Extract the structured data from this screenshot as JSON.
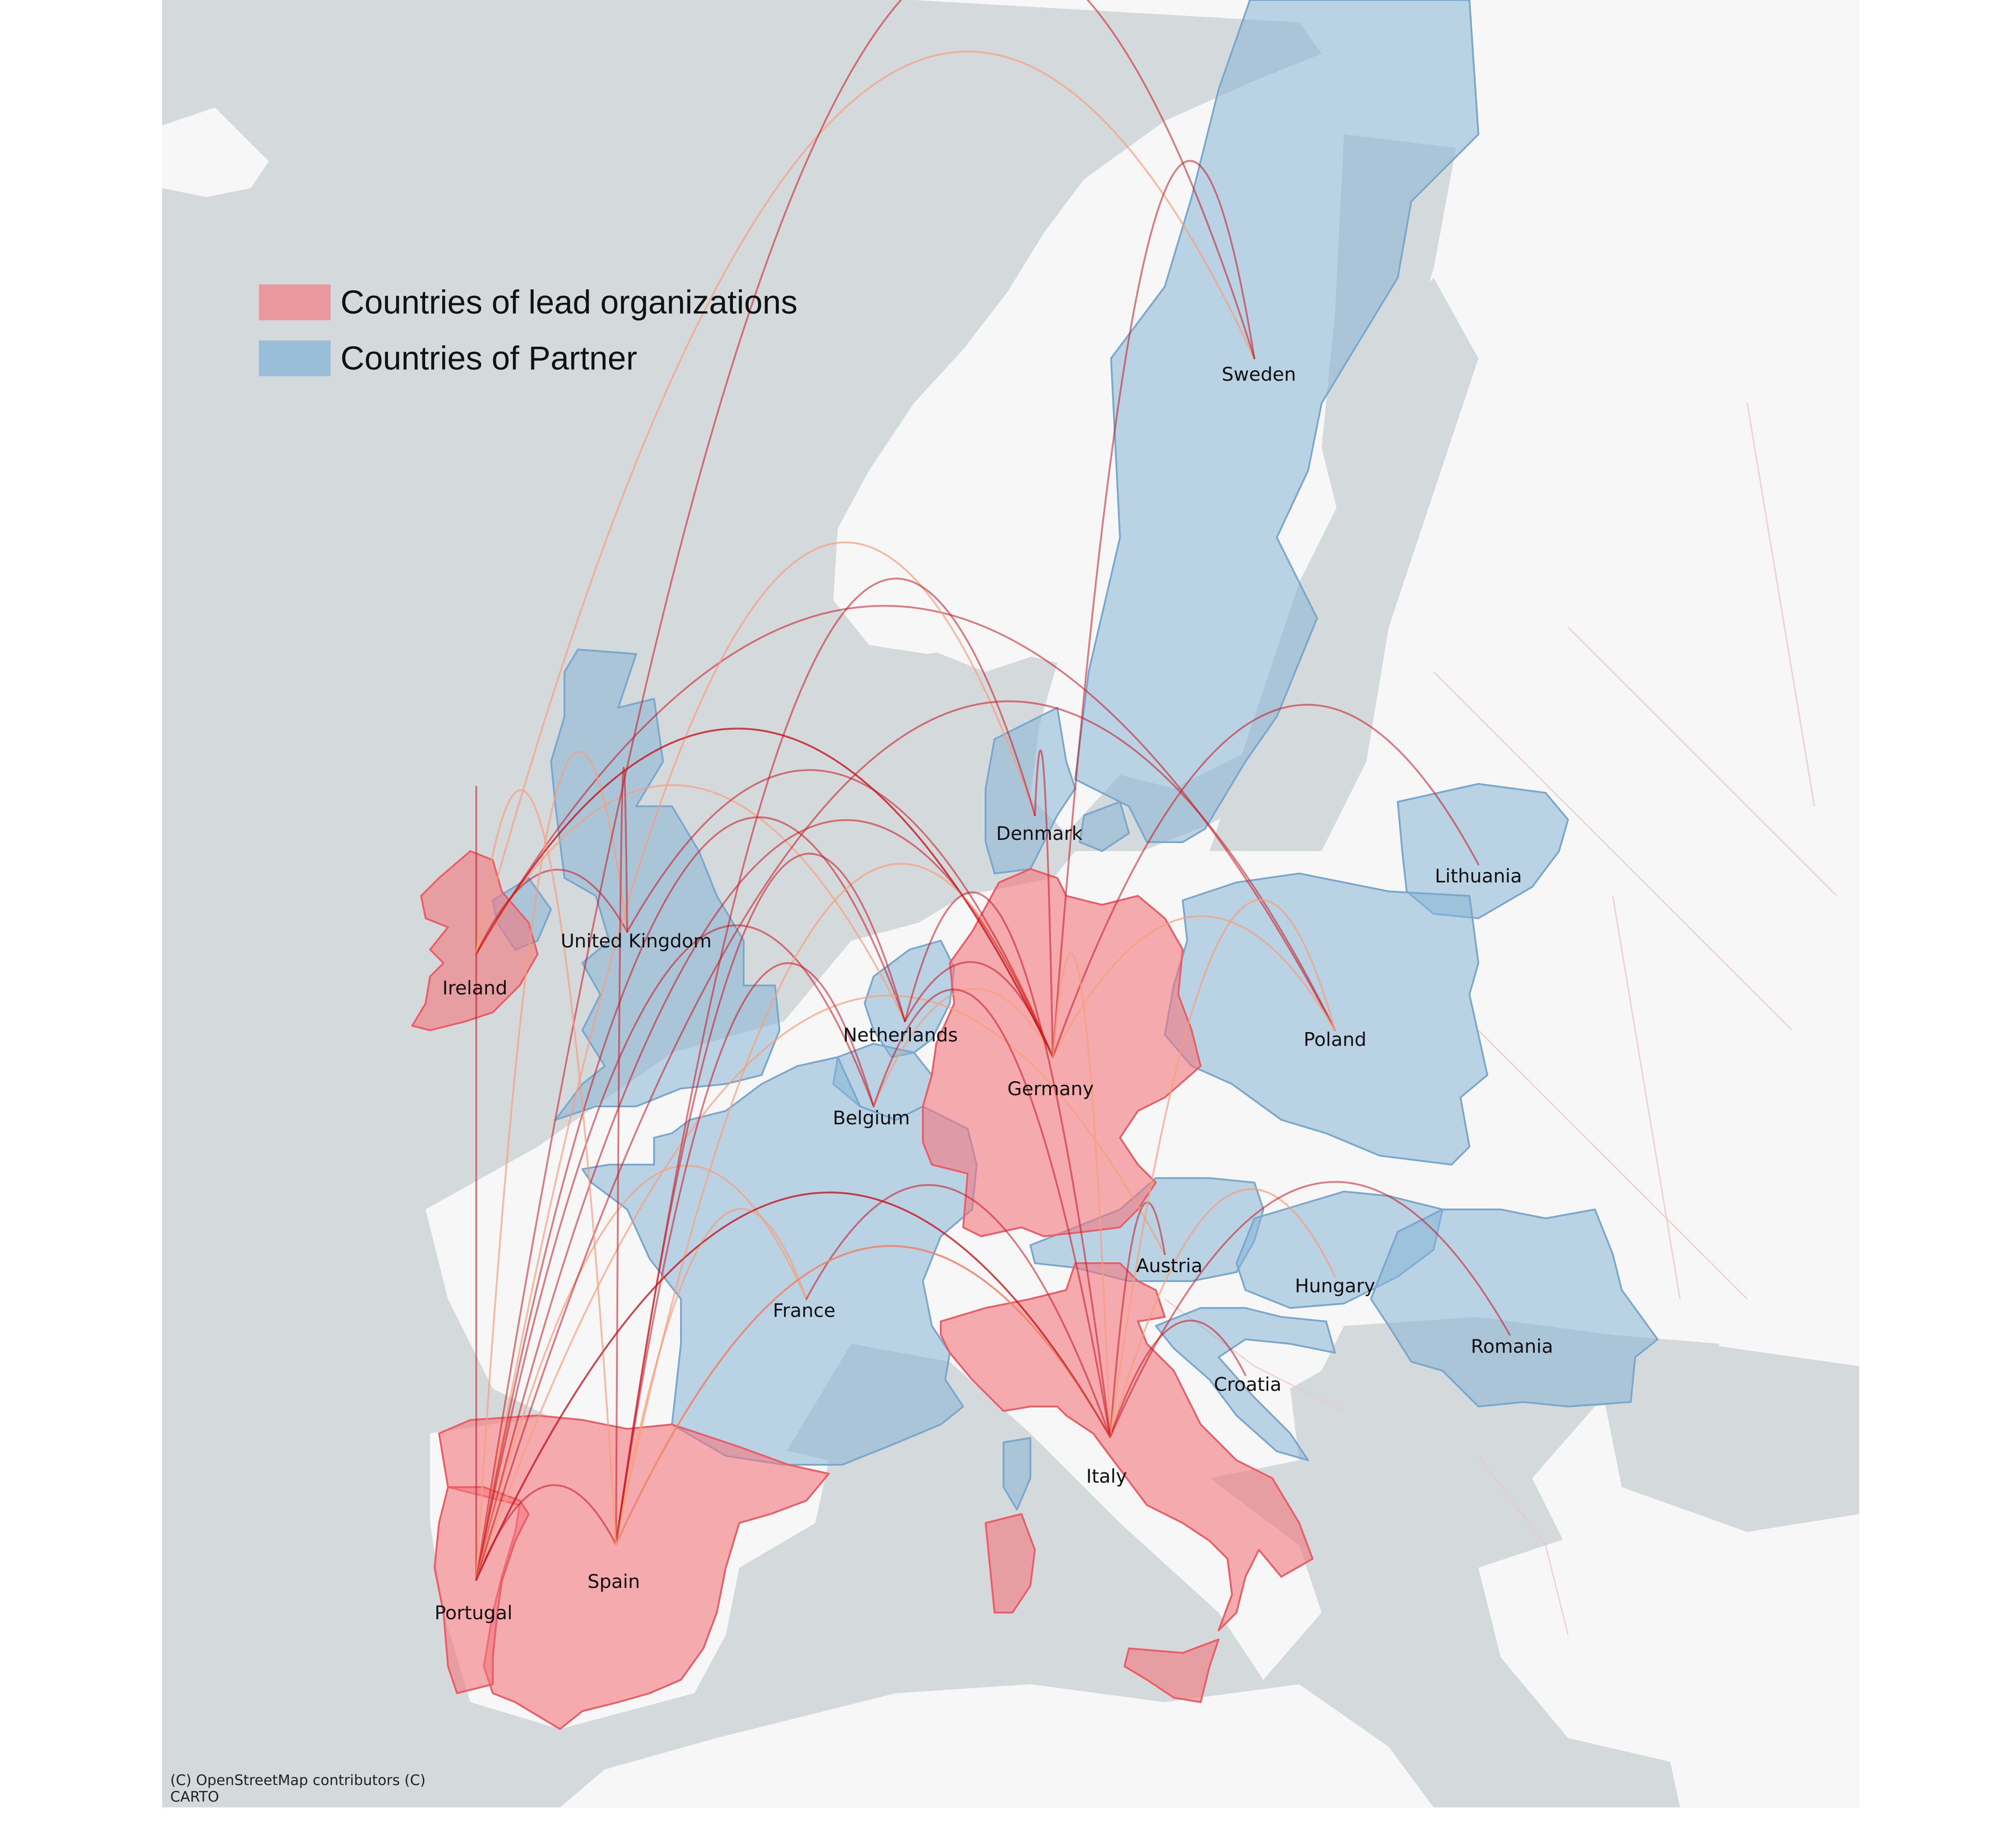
{
  "legend": {
    "lead_label": "Countries of lead organizations",
    "lead_color": "#f4777d",
    "partner_label": "Countries of Partner",
    "partner_color": "#86b4d6"
  },
  "attribution": {
    "line1": "(C) OpenStreetMap contributors (C)",
    "line2": "CARTO"
  },
  "colors": {
    "sea": "#d4d9dc",
    "land": "#f7f7f7",
    "border": "#e8c8c8",
    "arc_dark": "#c8141e",
    "arc_light": "#f6a07a"
  },
  "countries": {
    "sweden": {
      "name": "Sweden",
      "role": "partner"
    },
    "denmark": {
      "name": "Denmark",
      "role": "partner"
    },
    "lithuania": {
      "name": "Lithuania",
      "role": "partner"
    },
    "united_kingdom": {
      "name": "United Kingdom",
      "role": "partner"
    },
    "ireland": {
      "name": "Ireland",
      "role": "lead"
    },
    "netherlands": {
      "name": "Netherlands",
      "role": "partner"
    },
    "germany": {
      "name": "Germany",
      "role": "lead"
    },
    "poland": {
      "name": "Poland",
      "role": "partner"
    },
    "belgium": {
      "name": "Belgium",
      "role": "partner"
    },
    "austria": {
      "name": "Austria",
      "role": "partner"
    },
    "hungary": {
      "name": "Hungary",
      "role": "partner"
    },
    "france": {
      "name": "France",
      "role": "partner"
    },
    "romania": {
      "name": "Romania",
      "role": "partner"
    },
    "croatia": {
      "name": "Croatia",
      "role": "partner"
    },
    "italy": {
      "name": "Italy",
      "role": "lead"
    },
    "spain": {
      "name": "Spain",
      "role": "lead"
    },
    "portugal": {
      "name": "Portugal",
      "role": "lead"
    }
  },
  "links": [
    {
      "from": "Ireland",
      "to": "Sweden"
    },
    {
      "from": "Ireland",
      "to": "Germany"
    },
    {
      "from": "Ireland",
      "to": "Poland"
    },
    {
      "from": "Ireland",
      "to": "Netherlands"
    },
    {
      "from": "Ireland",
      "to": "United Kingdom"
    },
    {
      "from": "Portugal",
      "to": "Ireland"
    },
    {
      "from": "Portugal",
      "to": "United Kingdom"
    },
    {
      "from": "Portugal",
      "to": "Germany"
    },
    {
      "from": "Portugal",
      "to": "Sweden"
    },
    {
      "from": "Portugal",
      "to": "Denmark"
    },
    {
      "from": "Portugal",
      "to": "Netherlands"
    },
    {
      "from": "Portugal",
      "to": "Belgium"
    },
    {
      "from": "Portugal",
      "to": "France"
    },
    {
      "from": "Portugal",
      "to": "Italy"
    },
    {
      "from": "Portugal",
      "to": "Spain"
    },
    {
      "from": "Portugal",
      "to": "Austria"
    },
    {
      "from": "Portugal",
      "to": "Poland"
    },
    {
      "from": "Spain",
      "to": "United Kingdom"
    },
    {
      "from": "Spain",
      "to": "Germany"
    },
    {
      "from": "Spain",
      "to": "Netherlands"
    },
    {
      "from": "Spain",
      "to": "Belgium"
    },
    {
      "from": "Spain",
      "to": "France"
    },
    {
      "from": "Spain",
      "to": "Italy"
    },
    {
      "from": "Spain",
      "to": "Denmark"
    },
    {
      "from": "Spain",
      "to": "Ireland"
    },
    {
      "from": "Germany",
      "to": "United Kingdom"
    },
    {
      "from": "Germany",
      "to": "Sweden"
    },
    {
      "from": "Germany",
      "to": "Poland"
    },
    {
      "from": "Germany",
      "to": "Lithuania"
    },
    {
      "from": "Germany",
      "to": "Netherlands"
    },
    {
      "from": "Germany",
      "to": "Belgium"
    },
    {
      "from": "Germany",
      "to": "Denmark"
    },
    {
      "from": "Germany",
      "to": "Ireland"
    },
    {
      "from": "Italy",
      "to": "Germany"
    },
    {
      "from": "Italy",
      "to": "France"
    },
    {
      "from": "Italy",
      "to": "Austria"
    },
    {
      "from": "Italy",
      "to": "Hungary"
    },
    {
      "from": "Italy",
      "to": "Romania"
    },
    {
      "from": "Italy",
      "to": "Croatia"
    },
    {
      "from": "Italy",
      "to": "Poland"
    },
    {
      "from": "Italy",
      "to": "Belgium"
    },
    {
      "from": "Italy",
      "to": "Netherlands"
    },
    {
      "from": "Italy",
      "to": "Spain"
    },
    {
      "from": "Italy",
      "to": "Portugal"
    }
  ]
}
